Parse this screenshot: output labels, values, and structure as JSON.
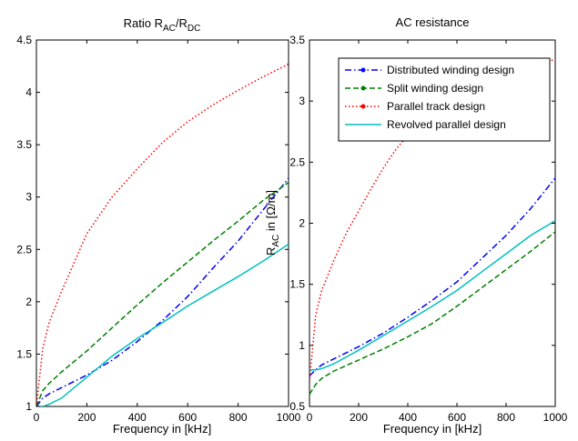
{
  "chart_data": [
    {
      "type": "line",
      "title": "Ratio R_AC/R_DC",
      "title_parts": {
        "main": "Ratio R",
        "sub1": "AC",
        "mid": "/R",
        "sub2": "DC"
      },
      "xlabel": "Frequency in [kHz]",
      "ylabel": "",
      "xlim": [
        0,
        1000
      ],
      "ylim": [
        1,
        4.5
      ],
      "xticks": [
        0,
        200,
        400,
        600,
        800,
        1000
      ],
      "yticks": [
        1,
        1.5,
        2,
        2.5,
        3,
        3.5,
        4,
        4.5
      ],
      "grid": false,
      "series": [
        {
          "name": "Distributed winding design",
          "color": "#0000ff",
          "style": "dashdot",
          "x": [
            0,
            25,
            50,
            100,
            200,
            300,
            400,
            500,
            600,
            700,
            800,
            900,
            1000
          ],
          "y": [
            1.0,
            1.08,
            1.12,
            1.18,
            1.3,
            1.44,
            1.62,
            1.82,
            2.05,
            2.32,
            2.58,
            2.88,
            3.18
          ]
        },
        {
          "name": "Split winding design",
          "color": "#008000",
          "style": "dashed",
          "x": [
            0,
            25,
            50,
            100,
            200,
            300,
            400,
            500,
            600,
            700,
            800,
            900,
            1000
          ],
          "y": [
            1.0,
            1.15,
            1.22,
            1.33,
            1.53,
            1.75,
            1.97,
            2.18,
            2.38,
            2.58,
            2.77,
            2.97,
            3.14
          ]
        },
        {
          "name": "Parallel track design",
          "color": "#ff0000",
          "style": "dotted",
          "x": [
            0,
            25,
            50,
            100,
            200,
            300,
            400,
            500,
            600,
            700,
            800,
            900,
            1000
          ],
          "y": [
            1.0,
            1.55,
            1.8,
            2.1,
            2.65,
            3.0,
            3.27,
            3.52,
            3.72,
            3.88,
            4.02,
            4.15,
            4.27
          ]
        },
        {
          "name": "Revolved parallel design",
          "color": "#00bfbf",
          "style": "solid",
          "x": [
            0,
            25,
            50,
            100,
            200,
            300,
            400,
            500,
            600,
            700,
            800,
            900,
            1000
          ],
          "y": [
            1.0,
            1.0,
            1.02,
            1.08,
            1.28,
            1.48,
            1.65,
            1.8,
            1.96,
            2.1,
            2.24,
            2.39,
            2.55
          ]
        }
      ]
    },
    {
      "type": "line",
      "title": "AC resistance",
      "xlabel": "Frequency in [kHz]",
      "ylabel": "R_AC in [Ω/m]",
      "ylabel_parts": {
        "main": "R",
        "sub": "AC",
        "rest": " in [Ω/m]"
      },
      "xlim": [
        0,
        1000
      ],
      "ylim": [
        0.5,
        3.5
      ],
      "xticks": [
        0,
        200,
        400,
        600,
        800,
        1000
      ],
      "yticks": [
        0.5,
        1,
        1.5,
        2,
        2.5,
        3,
        3.5
      ],
      "grid": false,
      "legend_position": "top",
      "series": [
        {
          "name": "Distributed winding design",
          "color": "#0000ff",
          "style": "dashdot",
          "marker": "dot",
          "x": [
            0,
            25,
            50,
            100,
            200,
            300,
            400,
            500,
            600,
            700,
            800,
            900,
            1000
          ],
          "y": [
            0.75,
            0.8,
            0.84,
            0.89,
            0.99,
            1.1,
            1.23,
            1.37,
            1.52,
            1.71,
            1.9,
            2.12,
            2.37
          ]
        },
        {
          "name": "Split winding design",
          "color": "#008000",
          "style": "dashed",
          "marker": "dot",
          "x": [
            0,
            25,
            50,
            100,
            200,
            300,
            400,
            500,
            600,
            700,
            800,
            900,
            1000
          ],
          "y": [
            0.6,
            0.68,
            0.73,
            0.79,
            0.88,
            0.97,
            1.07,
            1.18,
            1.32,
            1.47,
            1.62,
            1.77,
            1.93
          ]
        },
        {
          "name": "Parallel track design",
          "color": "#ff0000",
          "style": "dotted",
          "marker": "dot",
          "x": [
            0,
            25,
            50,
            100,
            150,
            200,
            250,
            300,
            350,
            400,
            450,
            500,
            550,
            600,
            700,
            800,
            900,
            1000
          ],
          "y": [
            0.7,
            1.25,
            1.45,
            1.7,
            1.92,
            2.1,
            2.28,
            2.45,
            2.6,
            2.72,
            2.83,
            2.93,
            3.0,
            3.07,
            3.17,
            3.25,
            3.3,
            3.34
          ]
        },
        {
          "name": "Revolved parallel design",
          "color": "#00bfbf",
          "style": "solid",
          "x": [
            0,
            25,
            50,
            100,
            200,
            300,
            400,
            500,
            600,
            700,
            800,
            900,
            1000
          ],
          "y": [
            0.8,
            0.8,
            0.81,
            0.85,
            0.96,
            1.08,
            1.2,
            1.32,
            1.45,
            1.6,
            1.75,
            1.9,
            2.02
          ]
        }
      ]
    }
  ]
}
